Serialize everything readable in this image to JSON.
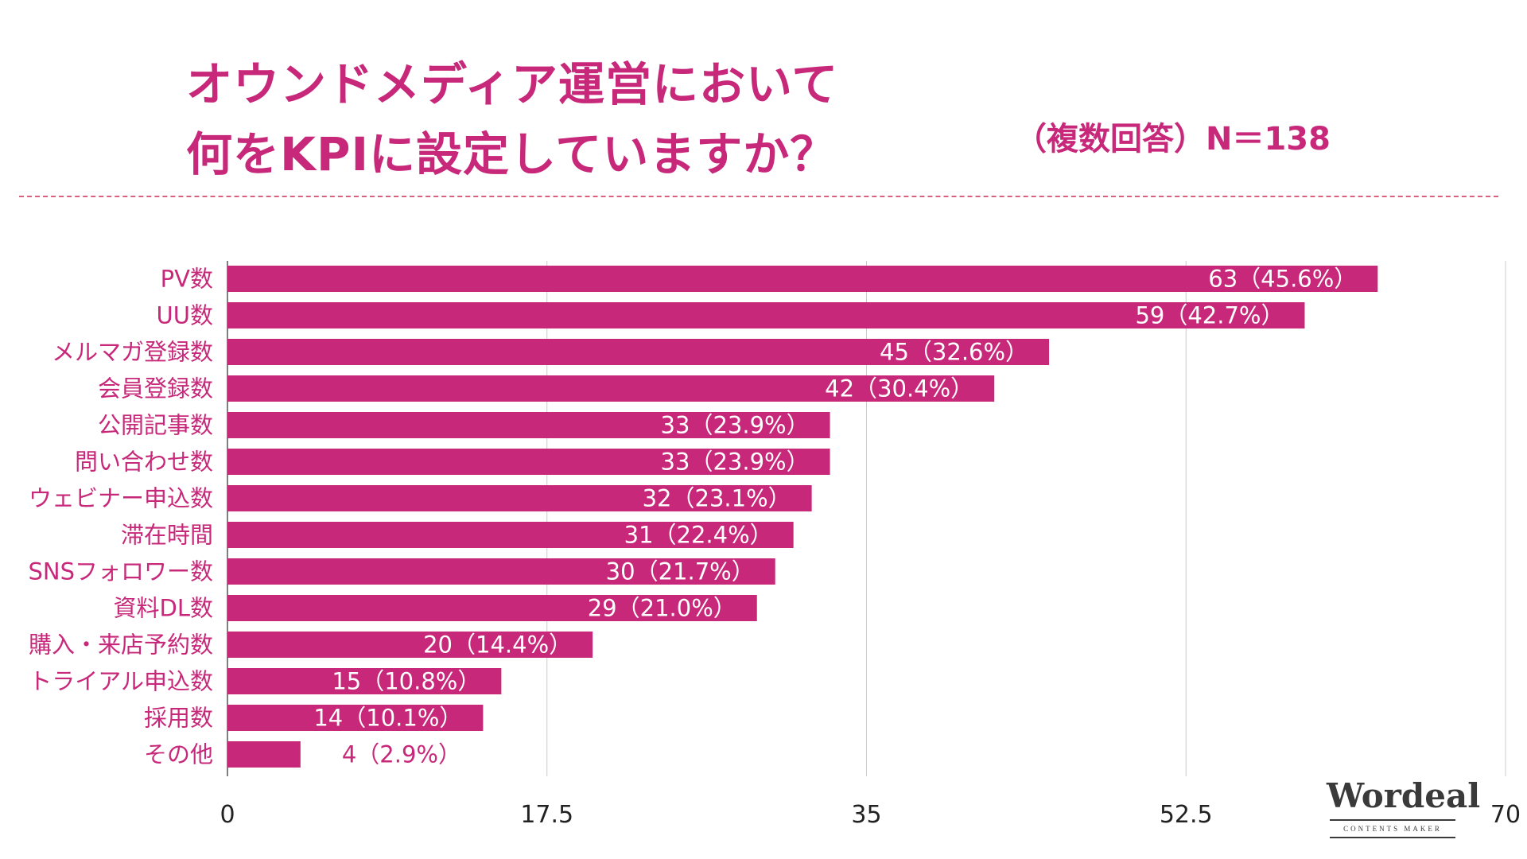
{
  "header": {
    "title_line1": "オウンドメディア運営において",
    "title_line2": "何をKPIに設定していますか？",
    "note": "（複数回答）N＝138"
  },
  "colors": {
    "accent": "#c8287a",
    "bar": "#c8287a",
    "grid": "#cccccc",
    "text": "#c8287a",
    "axis_text": "#222222"
  },
  "chart_data": {
    "type": "bar",
    "orientation": "horizontal",
    "title": "オウンドメディア運営において何をKPIに設定していますか？",
    "subtitle": "（複数回答）N＝138",
    "categories": [
      "PV数",
      "UU数",
      "メルマガ登録数",
      "会員登録数",
      "公開記事数",
      "問い合わせ数",
      "ウェビナー申込数",
      "滞在時間",
      "SNSフォロワー数",
      "資料DL数",
      "購入・来店予約数",
      "トライアル申込数",
      "採用数",
      "その他"
    ],
    "values": [
      63,
      59,
      45,
      42,
      33,
      33,
      32,
      31,
      30,
      29,
      20,
      15,
      14,
      4
    ],
    "data_labels": [
      "63（45.6%）",
      "59（42.7%）",
      "45（32.6%）",
      "42（30.4%）",
      "33（23.9%）",
      "33（23.9%）",
      "32（23.1%）",
      "31（22.4%）",
      "30（21.7%）",
      "29（21.0%）",
      "20（14.4%）",
      "15（10.8%）",
      "14（10.1%）",
      "4（2.9%）"
    ],
    "xlim": [
      0,
      70
    ],
    "xticks": [
      "0",
      "17.5",
      "35",
      "52.5",
      "70"
    ],
    "grid": true
  },
  "logo": {
    "word": "Wordeal",
    "tagline": "CONTENTS MAKER"
  }
}
